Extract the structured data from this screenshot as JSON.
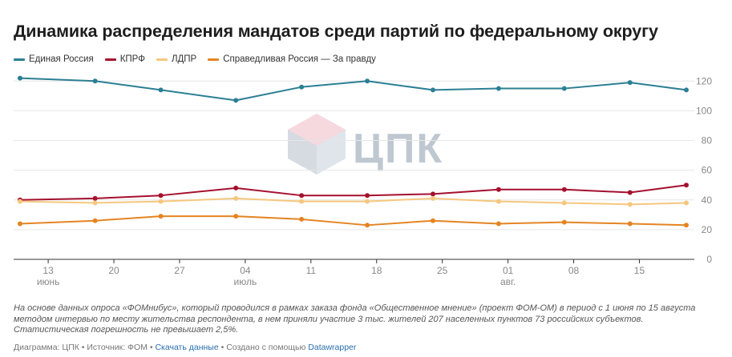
{
  "title": "Динамика распределения мандатов среди партий по  федеральному округу",
  "colors": {
    "ur": "#2b7f94",
    "kprf": "#a5102e",
    "ldpr": "#f5c77e",
    "sr": "#e58422",
    "grid": "#e6e6e6",
    "axis_text": "#888888"
  },
  "legend": [
    {
      "label": "Единая Россия",
      "color": "#2b7f94"
    },
    {
      "label": "КПРФ",
      "color": "#a5102e"
    },
    {
      "label": "ЛДПР",
      "color": "#f5c77e"
    },
    {
      "label": "Справедливая Россия — За правду",
      "color": "#e58422"
    }
  ],
  "watermark": {
    "text": "ЦПК"
  },
  "chart_data": {
    "type": "line",
    "x": [
      "2021-06-10",
      "2021-06-18",
      "2021-06-25",
      "2021-07-03",
      "2021-07-10",
      "2021-07-17",
      "2021-07-24",
      "2021-07-31",
      "2021-08-07",
      "2021-08-14",
      "2021-08-20"
    ],
    "series": [
      {
        "name": "Единая Россия",
        "color": "#2b7f94",
        "values": [
          122,
          120,
          114,
          107,
          116,
          120,
          114,
          115,
          115,
          119,
          114
        ]
      },
      {
        "name": "КПРФ",
        "color": "#a5102e",
        "values": [
          40,
          41,
          43,
          48,
          43,
          43,
          44,
          47,
          47,
          45,
          50
        ]
      },
      {
        "name": "ЛДПР",
        "color": "#f5c77e",
        "values": [
          39,
          38,
          39,
          41,
          39,
          39,
          41,
          39,
          38,
          37,
          38
        ]
      },
      {
        "name": "Справедливая Россия — За правду",
        "color": "#e58422",
        "values": [
          24,
          26,
          29,
          29,
          27,
          23,
          26,
          24,
          25,
          24,
          23
        ]
      }
    ],
    "ylim": [
      0,
      125
    ],
    "yticks": [
      "0",
      "20",
      "40",
      "60",
      "80",
      "100",
      "120"
    ],
    "xticks": [
      {
        "date": "2021-06-13",
        "day": "13",
        "month": "июнь"
      },
      {
        "date": "2021-06-20",
        "day": "20",
        "month": ""
      },
      {
        "date": "2021-06-27",
        "day": "27",
        "month": ""
      },
      {
        "date": "2021-07-04",
        "day": "04",
        "month": "июль"
      },
      {
        "date": "2021-07-11",
        "day": "11",
        "month": ""
      },
      {
        "date": "2021-07-18",
        "day": "18",
        "month": ""
      },
      {
        "date": "2021-07-25",
        "day": "25",
        "month": ""
      },
      {
        "date": "2021-08-01",
        "day": "01",
        "month": "авг."
      },
      {
        "date": "2021-08-08",
        "day": "08",
        "month": ""
      },
      {
        "date": "2021-08-15",
        "day": "15",
        "month": ""
      }
    ],
    "xlim": [
      "2021-06-10",
      "2021-08-20"
    ],
    "grid": true,
    "yaxis_side": "right"
  },
  "notes": "На основе данных опроса «ФОМнибус», который проводился в рамках заказа фонда «Общественное мнение» (проект ФОМ-ОМ) в период с 1 июня по 15 августа методом интервью по месту жительства респондента, в нем приняли участие 3 тыс. жителей 207 населенных пунктов 73 российских субъектов. Статистическая погрешность не превышает 2,5%.",
  "footer": {
    "prefix": "Диаграмма: ЦПК • Источник: ФОМ • ",
    "download": "Скачать данные",
    "middle": " • Создано с помощью ",
    "tool": "Datawrapper"
  }
}
